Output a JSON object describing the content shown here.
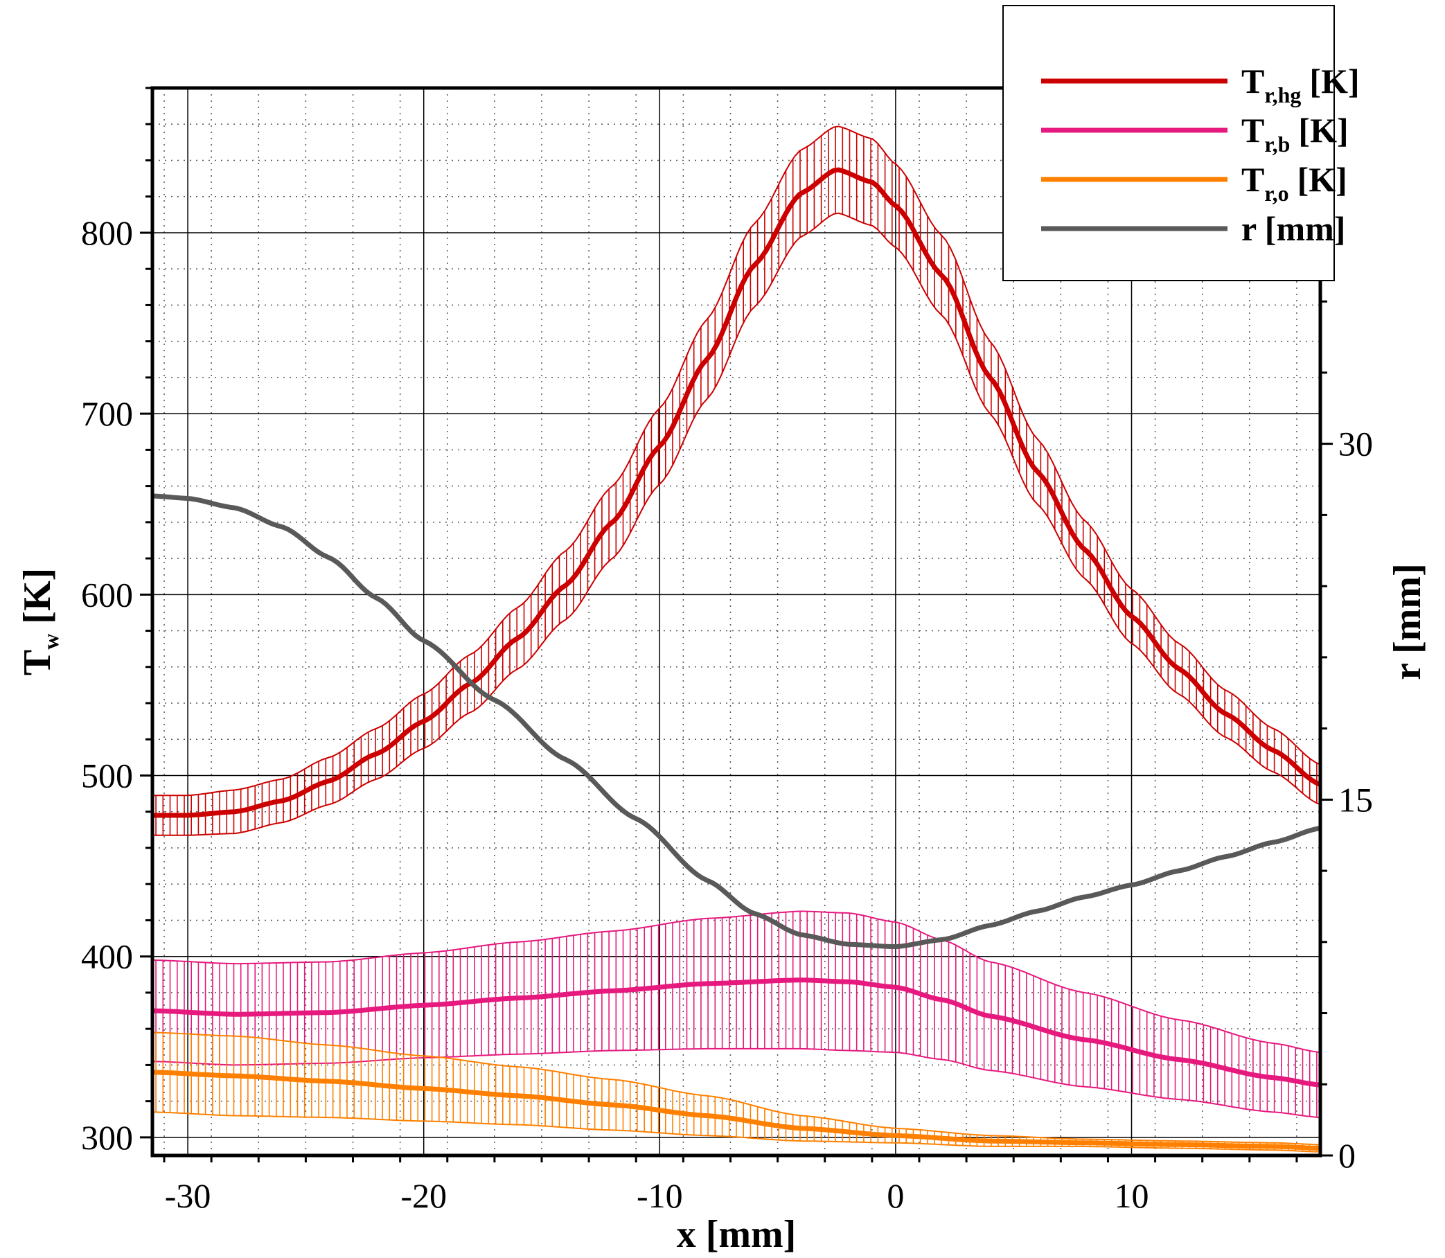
{
  "chart_data": {
    "type": "line",
    "title": "",
    "xlabel": "x [mm]",
    "ylabel": "T_w [K]",
    "ylabel_main": "T",
    "ylabel_sub": "w",
    "ylabel_unit": "[K]",
    "y2label": "r [mm]",
    "xlim": [
      -31.5,
      18
    ],
    "ylim": [
      290,
      880
    ],
    "y2lim": [
      0,
      45
    ],
    "xticks": [
      -30,
      -20,
      -10,
      0,
      10
    ],
    "xtick_labels": [
      "-30",
      "-20",
      "-10",
      "0",
      "10"
    ],
    "yticks": [
      300,
      400,
      500,
      600,
      700,
      800
    ],
    "ytick_labels": [
      "300",
      "400",
      "500",
      "600",
      "700",
      "800"
    ],
    "y2ticks": [
      0,
      15,
      30
    ],
    "y2tick_labels": [
      "0",
      "15",
      "30"
    ],
    "grid": true,
    "legend_position": "top-right",
    "series": [
      {
        "name": "T_r,hg [K]",
        "label_main": "T",
        "label_sub": "r,hg",
        "label_unit": "[K]",
        "axis": "left",
        "color": "#cc0000",
        "x": [
          -31.5,
          -30,
          -28,
          -26,
          -24,
          -22,
          -20,
          -18,
          -16,
          -14,
          -12,
          -10,
          -8,
          -6,
          -4,
          -2.5,
          -1,
          0,
          2,
          4,
          6,
          8,
          10,
          12,
          14,
          16,
          18
        ],
        "y": [
          478,
          478,
          480,
          486,
          497,
          512,
          530,
          551,
          576,
          605,
          640,
          682,
          730,
          782,
          822,
          835,
          828,
          815,
          776,
          720,
          668,
          625,
          588,
          559,
          534,
          514,
          495
        ],
        "err": [
          11,
          11,
          12,
          12,
          13,
          14,
          15,
          16,
          17,
          19,
          20,
          21,
          22,
          23,
          24,
          24,
          24,
          23,
          22,
          20,
          18,
          16,
          15,
          14,
          13,
          12,
          11
        ]
      },
      {
        "name": "T_r,b [K]",
        "label_main": "T",
        "label_sub": "r,b",
        "label_unit": "[K]",
        "axis": "left",
        "color": "#e6197e",
        "x": [
          -31.5,
          -28,
          -24,
          -20,
          -16,
          -12,
          -8,
          -4,
          -2,
          0,
          2,
          4,
          8,
          12,
          16,
          18
        ],
        "y": [
          370,
          368,
          369,
          373,
          377,
          381,
          385,
          387,
          386,
          383,
          376,
          367,
          354,
          343,
          333,
          329
        ],
        "err": [
          28,
          28,
          28,
          29,
          31,
          33,
          36,
          38,
          38,
          36,
          33,
          30,
          26,
          22,
          19,
          18
        ]
      },
      {
        "name": "T_r,o [K]",
        "label_main": "T",
        "label_sub": "r,o",
        "label_unit": "[K]",
        "axis": "left",
        "color": "#ff8000",
        "x": [
          -31.5,
          -28,
          -24,
          -20,
          -16,
          -12,
          -8,
          -4,
          0,
          4,
          8,
          12,
          16,
          18
        ],
        "y": [
          336,
          334,
          331,
          327,
          323,
          318,
          312,
          305,
          301,
          298,
          297,
          296,
          295,
          294
        ],
        "err": [
          22,
          22,
          20,
          18,
          16,
          14,
          11,
          7,
          4,
          3,
          2,
          2,
          2,
          2
        ]
      },
      {
        "name": "r [mm]",
        "label_main": "r [mm]",
        "label_sub": "",
        "label_unit": "",
        "axis": "right",
        "color": "#595959",
        "x": [
          -31.5,
          -30,
          -28,
          -26,
          -24,
          -22,
          -20,
          -17,
          -14,
          -11,
          -8,
          -6,
          -4,
          -2,
          0,
          2,
          4,
          6,
          8,
          10,
          12,
          14,
          16,
          18
        ],
        "y": [
          27.8,
          27.7,
          27.3,
          26.5,
          25.2,
          23.5,
          21.7,
          19.2,
          16.7,
          14.2,
          11.6,
          10.2,
          9.3,
          8.9,
          8.8,
          9.1,
          9.7,
          10.3,
          10.9,
          11.4,
          12.0,
          12.6,
          13.2,
          13.8
        ]
      }
    ]
  }
}
